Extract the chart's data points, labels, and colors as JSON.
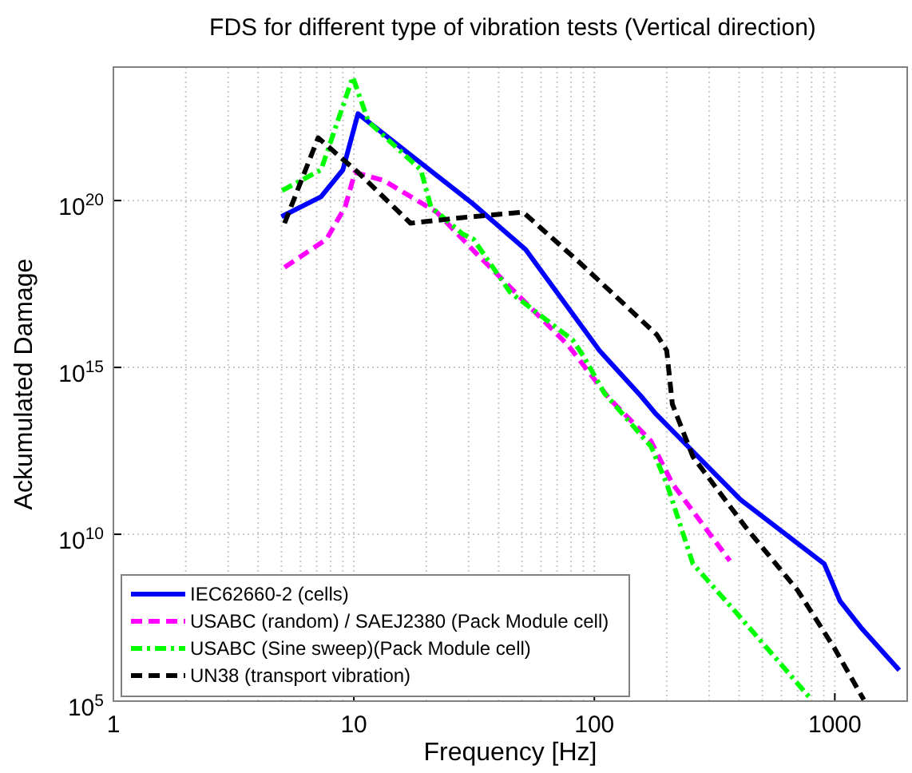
{
  "chart_data": {
    "type": "line",
    "title": "FDS for different type of vibration tests (Vertical direction)",
    "xlabel": "Frequency [Hz]",
    "ylabel": "Ackumulated Damage",
    "log": "xy",
    "grid": true,
    "legend": "bottom left",
    "xlim": [
      1,
      2000
    ],
    "xticks": [
      1,
      10,
      100,
      1000
    ],
    "ylim": [
      100000.0,
      1e+24
    ],
    "yticks": [
      {
        "value": 100000.0,
        "label": "10$^{5}$"
      },
      {
        "value": 10000000000.0,
        "label": "10$^{10}$"
      },
      {
        "value": 1000000000000000.0,
        "label": "10$^{15}$"
      },
      {
        "value": 1e+20,
        "label": "10$^{20}$"
      }
    ],
    "series": [
      {
        "name": "IEC62660-2 (cells)",
        "color": "#0000ff",
        "line_style": "solid",
        "x": [
          5,
          7.3,
          9,
          10.4,
          31.4,
          51.8,
          105,
          156,
          181,
          245,
          405,
          904,
          1051,
          1285,
          1853
        ],
        "values": [
          3.3e+19,
          1.3e+20,
          8.3e+20,
          4e+22,
          7.8e+19,
          3.4e+18,
          3200000000000000.0,
          140000000000000.0,
          39000000000000.0,
          4300000000000.0,
          110000000000.0,
          1300000000.0,
          100000000.0,
          16000000.0,
          850000.0
        ]
      },
      {
        "name": "USABC (random) / SAEJ2380 (Pack Module cell)",
        "color": "#ff00ff",
        "line_style": "dashed",
        "x": [
          5.15,
          7.7,
          9.2,
          10.1,
          13.3,
          22.1,
          31.4,
          51.8,
          77.8,
          115,
          172,
          211,
          366
        ],
        "values": [
          1e+18,
          7e+18,
          6.5e+19,
          7e+20,
          4e+20,
          4.5e+19,
          3.2e+18,
          8.7e+16,
          4600000000000000.0,
          120000000000000.0,
          6200000000000.0,
          330000000000.0,
          1600000000.0
        ]
      },
      {
        "name": "USABC (Sine sweep)(Pack Module cell)",
        "color": "#00ff00",
        "line_style": "dashdot",
        "x": [
          5.03,
          7.3,
          9.9,
          11.5,
          19,
          20.9,
          28.3,
          31.4,
          44.6,
          81.3,
          90,
          110,
          172,
          200,
          257,
          385,
          573,
          800
        ],
        "values": [
          2e+20,
          8.3e+20,
          5e+23,
          2.3e+22,
          8.3e+20,
          6.5e+19,
          1e+19,
          7e+18,
          1.8e+17,
          6600000000000000.0,
          2200000000000000.0,
          170000000000000.0,
          4300000000000.0,
          330000000000.0,
          1300000000.0,
          49000000.0,
          1800000.0,
          110000.0
        ]
      },
      {
        "name": "UN38 (transport vibration)",
        "color": "#000000",
        "line_style": "dashed",
        "x": [
          5.15,
          7.1,
          10.4,
          17.2,
          28.3,
          50.5,
          85,
          182,
          200,
          211,
          257,
          424,
          700,
          1000,
          1320
        ],
        "values": [
          2.1e+19,
          7.6e+21,
          7e+20,
          2.1e+19,
          3.1e+19,
          4.5e+19,
          1.6e+18,
          9500000000000000.0,
          3200000000000000.0,
          80000000000000.0,
          2100000000000.0,
          17000000000.0,
          210000000.0,
          3700000.0,
          110000.0
        ]
      }
    ]
  }
}
